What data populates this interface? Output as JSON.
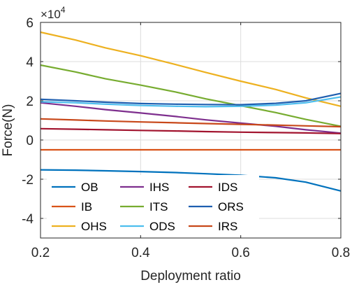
{
  "chart_data": {
    "type": "line",
    "xlabel": "Deployment ratio",
    "ylabel": "Force(N)",
    "y_multiplier_label": "×10",
    "y_multiplier_exponent": "4",
    "y_multiplier": 10000,
    "xlim": [
      0.2,
      0.8
    ],
    "ylim": [
      -5,
      6
    ],
    "x_ticks": [
      0.2,
      0.4,
      0.6,
      0.8
    ],
    "x_tick_labels": [
      "0.2",
      "0.4",
      "0.6",
      "0.8"
    ],
    "y_ticks": [
      -4,
      -2,
      0,
      2,
      4,
      6
    ],
    "y_tick_labels": [
      "-4",
      "-2",
      "0",
      "2",
      "4",
      "6"
    ],
    "grid": true,
    "legend_placement": "bottom-left",
    "x": [
      0.2,
      0.27,
      0.33,
      0.4,
      0.47,
      0.53,
      0.6,
      0.67,
      0.73,
      0.8
    ],
    "series": [
      {
        "name": "OB",
        "color": "#0072BD",
        "values": [
          -1.52,
          -1.54,
          -1.57,
          -1.61,
          -1.66,
          -1.72,
          -1.8,
          -1.93,
          -2.15,
          -2.6
        ]
      },
      {
        "name": "IB",
        "color": "#D95319",
        "values": [
          -0.5,
          -0.5,
          -0.5,
          -0.5,
          -0.5,
          -0.5,
          -0.5,
          -0.5,
          -0.5,
          -0.5
        ]
      },
      {
        "name": "OHS",
        "color": "#EDB120",
        "values": [
          5.5,
          5.1,
          4.7,
          4.3,
          3.85,
          3.45,
          3.0,
          2.58,
          2.15,
          1.72
        ]
      },
      {
        "name": "IHS",
        "color": "#7E2F8E",
        "values": [
          1.9,
          1.72,
          1.55,
          1.38,
          1.2,
          1.03,
          0.86,
          0.7,
          0.52,
          0.35
        ]
      },
      {
        "name": "ITS",
        "color": "#77AC30",
        "values": [
          3.82,
          3.47,
          3.12,
          2.8,
          2.45,
          2.1,
          1.75,
          1.4,
          1.05,
          0.7
        ]
      },
      {
        "name": "ODS",
        "color": "#4DBEEE",
        "values": [
          1.95,
          1.9,
          1.83,
          1.76,
          1.72,
          1.7,
          1.72,
          1.78,
          1.9,
          2.2
        ]
      },
      {
        "name": "IDS",
        "color": "#A2142F",
        "values": [
          0.58,
          0.55,
          0.52,
          0.49,
          0.46,
          0.43,
          0.4,
          0.38,
          0.36,
          0.33
        ]
      },
      {
        "name": "ORS",
        "color": "#1F5FB0",
        "values": [
          2.08,
          2.0,
          1.93,
          1.86,
          1.83,
          1.81,
          1.8,
          1.87,
          2.0,
          2.38
        ]
      },
      {
        "name": "IRS",
        "color": "#C8481A",
        "values": [
          1.08,
          1.02,
          0.97,
          0.92,
          0.88,
          0.84,
          0.8,
          0.76,
          0.72,
          0.68
        ]
      }
    ]
  }
}
